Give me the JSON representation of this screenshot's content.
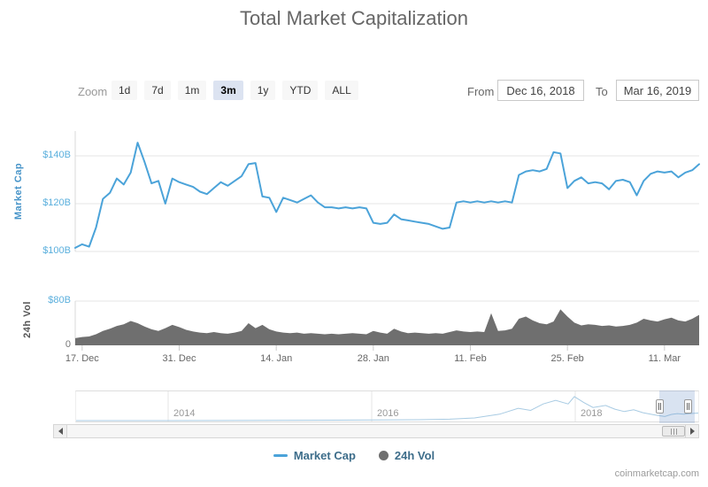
{
  "controls": {
    "zoom_label": "Zoom",
    "zoom_buttons": [
      {
        "label": "1d",
        "selected": false
      },
      {
        "label": "7d",
        "selected": false
      },
      {
        "label": "1m",
        "selected": false
      },
      {
        "label": "3m",
        "selected": true
      },
      {
        "label": "1y",
        "selected": false
      },
      {
        "label": "YTD",
        "selected": false
      },
      {
        "label": "ALL",
        "selected": false
      }
    ],
    "from_label": "From",
    "from_value": "Dec 16, 2018",
    "to_label": "To",
    "to_value": "Mar 16, 2019",
    "selected_button_bg": "#dce3f1"
  },
  "legend": {
    "items": [
      {
        "label": "Market Cap",
        "marker": "line",
        "color": "#4ba3d9"
      },
      {
        "label": "24h Vol",
        "marker": "circle",
        "color": "#6f6f6f"
      }
    ]
  },
  "watermark": "coinmarketcap.com",
  "chart_data": {
    "type": "line+area",
    "title": "Total Market Capitalization",
    "date_range": {
      "from": "Dec 16, 2018",
      "to": "Mar 16, 2019"
    },
    "x_ticks": [
      {
        "day": 1,
        "label": "17. Dec"
      },
      {
        "day": 15,
        "label": "31. Dec"
      },
      {
        "day": 29,
        "label": "14. Jan"
      },
      {
        "day": 43,
        "label": "28. Jan"
      },
      {
        "day": 57,
        "label": "11. Feb"
      },
      {
        "day": 71,
        "label": "25. Feb"
      },
      {
        "day": 85,
        "label": "11. Mar"
      }
    ],
    "market_cap": {
      "type": "line",
      "name": "Market Cap",
      "color": "#4ba3d9",
      "axis_title": "Market Cap",
      "unit": "billion USD",
      "ylim": [
        95,
        150
      ],
      "yticks": [
        {
          "label": "$140B",
          "value": 140,
          "color": "#5aafdd"
        },
        {
          "label": "$120B",
          "value": 120,
          "color": "#5aafdd"
        },
        {
          "label": "$100B",
          "value": 100,
          "color": "#5aafdd"
        }
      ],
      "values": [
        101.5,
        103,
        102,
        110,
        122,
        124.5,
        130.5,
        128,
        133,
        145.5,
        137.5,
        128.5,
        129.5,
        120,
        130.5,
        129,
        128,
        127,
        125,
        124,
        126.5,
        129,
        127.5,
        129.5,
        131.5,
        136.5,
        137,
        123,
        122.5,
        116.5,
        122.5,
        121.5,
        120.5,
        122,
        123.5,
        120.5,
        118.5,
        118.5,
        118,
        118.5,
        118,
        118.5,
        118,
        112,
        111.5,
        112,
        115.5,
        113.5,
        113,
        112.5,
        112,
        111.5,
        110.5,
        109.5,
        110,
        120.5,
        121,
        120.5,
        121,
        120.5,
        121,
        120.5,
        121,
        120.5,
        132,
        133.5,
        134,
        133.5,
        134.5,
        141.5,
        141,
        126.5,
        129.5,
        131,
        128.5,
        129,
        128.5,
        126,
        129.5,
        130,
        129,
        123.5,
        129.5,
        132.5,
        133.5,
        133,
        133.5,
        131,
        133,
        134,
        136.5
      ]
    },
    "volume_24h": {
      "type": "area",
      "name": "24h Vol",
      "color": "#6f6f6f",
      "axis_title": "24h Vol",
      "unit": "billion USD",
      "ylim": [
        0,
        80
      ],
      "yticks": [
        {
          "label": "$80B",
          "value": 80,
          "color": "#5aafdd"
        },
        {
          "label": "0",
          "value": 0,
          "color": "#777777"
        }
      ],
      "values": [
        13,
        15,
        16,
        20,
        26,
        30,
        35,
        38,
        44,
        40,
        34,
        29,
        26,
        31,
        37,
        33,
        28,
        25,
        23,
        22,
        24,
        22,
        21,
        23,
        26,
        40,
        31,
        37,
        29,
        25,
        23,
        22,
        23,
        21,
        22,
        21,
        20,
        21,
        20,
        21,
        22,
        21,
        20,
        26,
        23,
        21,
        30,
        25,
        22,
        23,
        22,
        21,
        22,
        21,
        24,
        27,
        25,
        24,
        25,
        24,
        58,
        26,
        27,
        30,
        48,
        52,
        45,
        40,
        38,
        43,
        65,
        52,
        41,
        36,
        38,
        37,
        35,
        36,
        34,
        35,
        37,
        41,
        48,
        45,
        43,
        47,
        50,
        45,
        43,
        48,
        55
      ]
    },
    "navigator": {
      "year_labels": [
        "2014",
        "2016",
        "2018"
      ],
      "line_color": "#a8cbe3",
      "line": [
        [
          0,
          0.03
        ],
        [
          0.15,
          0.03
        ],
        [
          0.3,
          0.04
        ],
        [
          0.45,
          0.05
        ],
        [
          0.55,
          0.06
        ],
        [
          0.6,
          0.08
        ],
        [
          0.64,
          0.12
        ],
        [
          0.68,
          0.25
        ],
        [
          0.71,
          0.45
        ],
        [
          0.73,
          0.38
        ],
        [
          0.75,
          0.6
        ],
        [
          0.77,
          0.72
        ],
        [
          0.79,
          0.6
        ],
        [
          0.8,
          0.85
        ],
        [
          0.815,
          0.65
        ],
        [
          0.83,
          0.48
        ],
        [
          0.85,
          0.55
        ],
        [
          0.865,
          0.42
        ],
        [
          0.88,
          0.34
        ],
        [
          0.895,
          0.4
        ],
        [
          0.91,
          0.3
        ],
        [
          0.925,
          0.24
        ],
        [
          0.935,
          0.2
        ],
        [
          0.945,
          0.17
        ],
        [
          0.955,
          0.24
        ],
        [
          0.965,
          0.27
        ],
        [
          0.975,
          0.25
        ],
        [
          0.985,
          0.27
        ],
        [
          1,
          0.29
        ]
      ]
    },
    "grid_color": "#e6e6e6",
    "axis_line_color": "#d8d8d8",
    "legend_position": "bottom-center"
  }
}
